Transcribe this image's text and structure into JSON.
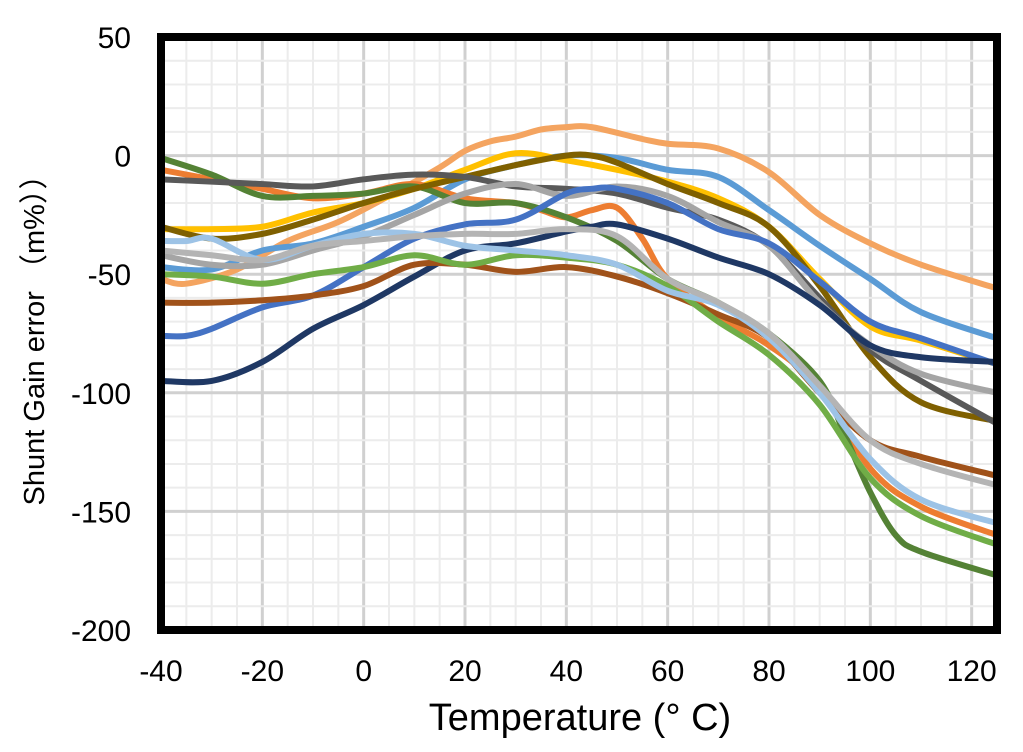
{
  "chart_data": {
    "type": "line",
    "xlabel": "Temperature (° C)",
    "ylabel": "Shunt Gain error （m%））",
    "xlim": [
      -40,
      125
    ],
    "ylim": [
      -200,
      50
    ],
    "xticks": [
      "-40",
      "-20",
      "0",
      "20",
      "40",
      "60",
      "80",
      "100",
      "120"
    ],
    "yticks": [
      "50",
      "0",
      "-50",
      "-100",
      "-150",
      "-200"
    ],
    "grid": true,
    "x_major_step": 20,
    "x_minor_step": 5,
    "y_major_step": 50,
    "y_minor_step": 10,
    "series": [
      {
        "color": "#F4A460",
        "x": [
          -40,
          -35,
          -25,
          -15,
          -5,
          5,
          15,
          20,
          25,
          30,
          35,
          40,
          45,
          55,
          60,
          70,
          80,
          90,
          100,
          110,
          125
        ],
        "y": [
          -52,
          -54,
          -48,
          -36,
          -28,
          -17,
          -5,
          2,
          6,
          8,
          11,
          12,
          12,
          7,
          5,
          3,
          -7,
          -25,
          -37,
          -46,
          -56
        ]
      },
      {
        "color": "#5B9BD5",
        "x": [
          -40,
          -30,
          -20,
          -10,
          0,
          10,
          20,
          30,
          40,
          50,
          60,
          70,
          80,
          90,
          100,
          110,
          125
        ],
        "y": [
          -47,
          -48,
          -40,
          -37,
          -30,
          -22,
          -10,
          -4,
          0,
          -1,
          -6,
          -9,
          -23,
          -38,
          -52,
          -66,
          -77
        ]
      },
      {
        "color": "#FFC000",
        "x": [
          -40,
          -30,
          -20,
          -10,
          0,
          10,
          20,
          30,
          40,
          50,
          60,
          70,
          80,
          90,
          100,
          110,
          125
        ],
        "y": [
          -31,
          -31,
          -30,
          -24,
          -20,
          -14,
          -6,
          1,
          -2,
          -6,
          -11,
          -18,
          -30,
          -52,
          -72,
          -78,
          -88
        ]
      },
      {
        "color": "#ED7D31",
        "x": [
          -40,
          -30,
          -20,
          -10,
          0,
          10,
          20,
          30,
          35,
          40,
          45,
          50,
          55,
          60,
          70,
          80,
          90,
          100,
          110,
          125
        ],
        "y": [
          -6,
          -10,
          -14,
          -18,
          -16,
          -12,
          -18,
          -20,
          -23,
          -26,
          -23,
          -22,
          -35,
          -52,
          -68,
          -80,
          -98,
          -132,
          -148,
          -160
        ]
      },
      {
        "color": "#548235",
        "x": [
          -40,
          -30,
          -20,
          -10,
          0,
          10,
          20,
          30,
          40,
          50,
          60,
          70,
          80,
          90,
          95,
          100,
          105,
          110,
          125
        ],
        "y": [
          -1,
          -8,
          -17,
          -17,
          -16,
          -13,
          -20,
          -20,
          -26,
          -36,
          -52,
          -62,
          -75,
          -95,
          -118,
          -142,
          -160,
          -167,
          -177
        ]
      },
      {
        "color": "#7F6000",
        "x": [
          -40,
          -30,
          -20,
          -10,
          0,
          10,
          20,
          30,
          40,
          45,
          50,
          60,
          70,
          80,
          90,
          100,
          110,
          125
        ],
        "y": [
          -30,
          -35,
          -33,
          -27,
          -20,
          -14,
          -9,
          -4,
          0,
          0,
          -3,
          -12,
          -20,
          -30,
          -55,
          -85,
          -104,
          -112
        ]
      },
      {
        "color": "#595959",
        "x": [
          -40,
          -30,
          -20,
          -10,
          0,
          10,
          20,
          30,
          40,
          50,
          60,
          70,
          80,
          90,
          100,
          110,
          125
        ],
        "y": [
          -10,
          -11,
          -12,
          -13,
          -10,
          -8,
          -9,
          -13,
          -14,
          -16,
          -22,
          -27,
          -38,
          -60,
          -82,
          -95,
          -113
        ]
      },
      {
        "color": "#A5A5A5",
        "x": [
          -40,
          -30,
          -20,
          -10,
          0,
          10,
          20,
          30,
          40,
          50,
          60,
          70,
          80,
          90,
          100,
          110,
          125
        ],
        "y": [
          -42,
          -46,
          -46,
          -40,
          -34,
          -25,
          -16,
          -12,
          -17,
          -13,
          -17,
          -28,
          -38,
          -62,
          -80,
          -92,
          -100
        ]
      },
      {
        "color": "#4472C4",
        "x": [
          -40,
          -35,
          -30,
          -20,
          -10,
          0,
          10,
          20,
          30,
          40,
          45,
          50,
          60,
          70,
          80,
          90,
          100,
          110,
          125
        ],
        "y": [
          -76,
          -76,
          -73,
          -64,
          -59,
          -47,
          -35,
          -29,
          -27,
          -16,
          -14,
          -14,
          -20,
          -31,
          -37,
          -53,
          -70,
          -77,
          -88
        ]
      },
      {
        "color": "#1F3864",
        "x": [
          -40,
          -30,
          -20,
          -10,
          0,
          10,
          20,
          30,
          40,
          45,
          50,
          60,
          70,
          80,
          90,
          100,
          110,
          125
        ],
        "y": [
          -95,
          -95,
          -87,
          -73,
          -63,
          -51,
          -40,
          -37,
          -32,
          -30,
          -29,
          -35,
          -43,
          -50,
          -63,
          -80,
          -85,
          -87
        ]
      },
      {
        "color": "#A0521A",
        "x": [
          -40,
          -30,
          -20,
          -10,
          0,
          10,
          20,
          30,
          40,
          50,
          60,
          70,
          80,
          90,
          100,
          110,
          125
        ],
        "y": [
          -62,
          -62,
          -61,
          -59,
          -55,
          -46,
          -46,
          -49,
          -47,
          -51,
          -58,
          -67,
          -77,
          -100,
          -120,
          -127,
          -135
        ]
      },
      {
        "color": "#70AD47",
        "x": [
          -40,
          -30,
          -20,
          -10,
          0,
          10,
          20,
          30,
          40,
          50,
          60,
          70,
          80,
          90,
          100,
          110,
          125
        ],
        "y": [
          -50,
          -51,
          -54,
          -50,
          -47,
          -42,
          -46,
          -42,
          -43,
          -46,
          -55,
          -70,
          -84,
          -105,
          -136,
          -152,
          -164
        ]
      },
      {
        "color": "#9DC3E6",
        "x": [
          -40,
          -35,
          -30,
          -20,
          -10,
          0,
          10,
          20,
          30,
          40,
          50,
          60,
          70,
          80,
          90,
          100,
          110,
          125
        ],
        "y": [
          -36,
          -36,
          -35,
          -44,
          -38,
          -33,
          -33,
          -38,
          -40,
          -42,
          -46,
          -57,
          -63,
          -77,
          -100,
          -128,
          -145,
          -155
        ]
      },
      {
        "color": "#B4B4B4",
        "x": [
          -40,
          -30,
          -20,
          -10,
          0,
          10,
          20,
          30,
          40,
          50,
          60,
          70,
          80,
          90,
          100,
          110,
          125
        ],
        "y": [
          -40,
          -42,
          -44,
          -38,
          -36,
          -34,
          -33,
          -33,
          -31,
          -34,
          -52,
          -62,
          -75,
          -97,
          -120,
          -130,
          -139
        ]
      }
    ]
  }
}
